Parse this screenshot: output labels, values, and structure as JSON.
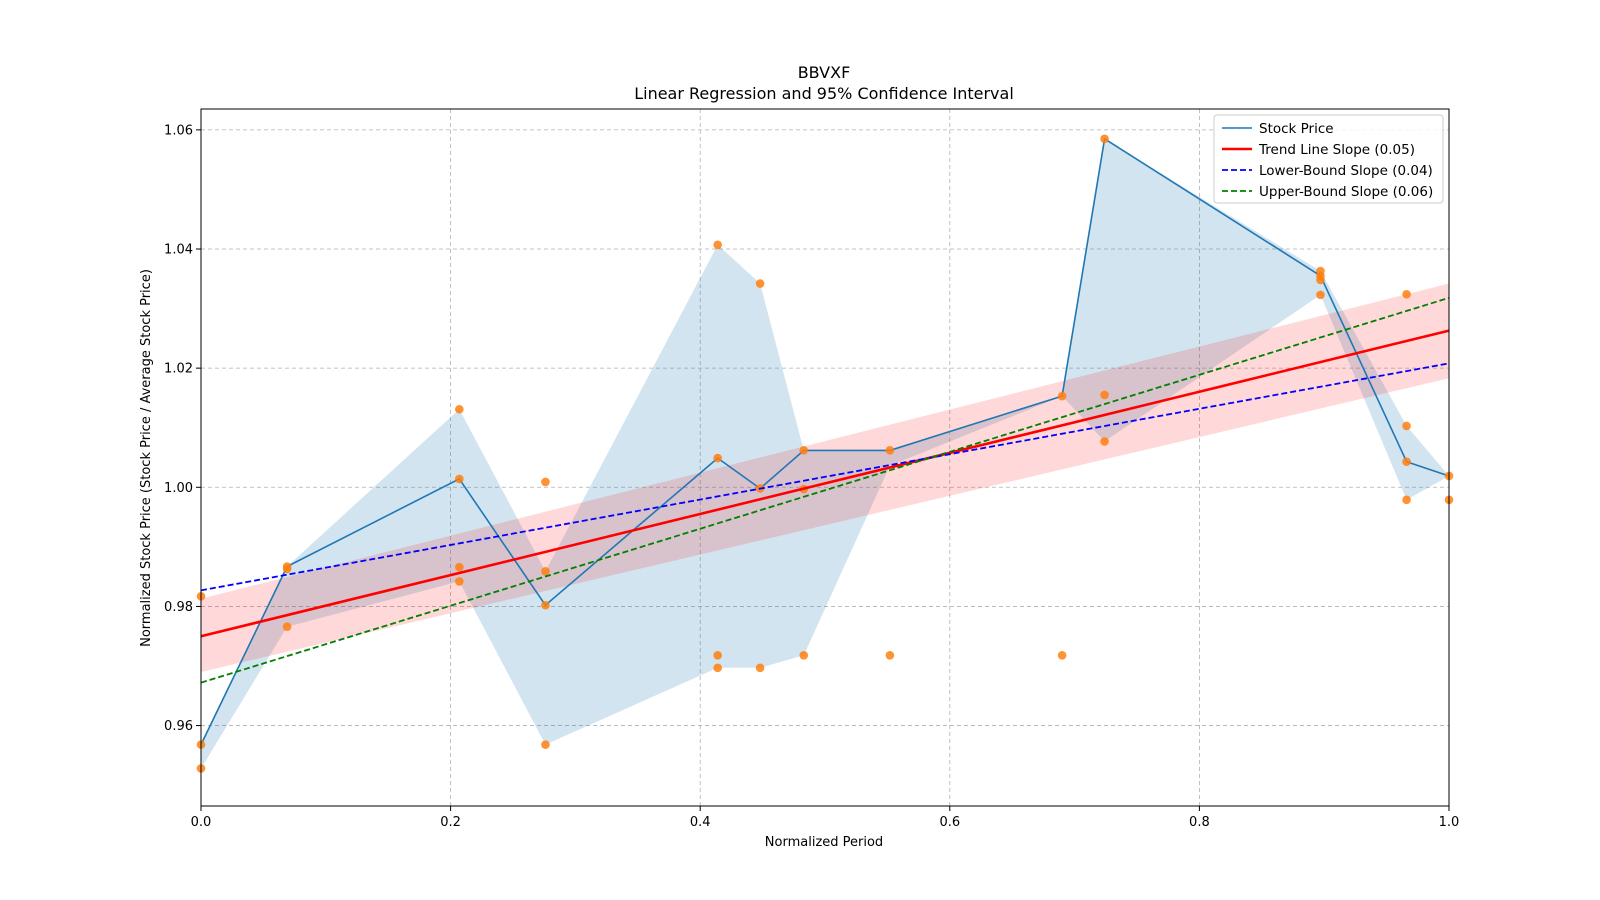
{
  "chart_data": {
    "type": "line",
    "title": "BBVXF",
    "subtitle": "Linear Regression and 95% Confidence Interval",
    "xlabel": "Normalized Period",
    "ylabel": "Normalized Stock Price (Stock Price / Average Stock Price)",
    "xlim": [
      0.0,
      1.0
    ],
    "ylim": [
      0.9465,
      1.0635
    ],
    "xticks": [
      0.0,
      0.2,
      0.4,
      0.6,
      0.8,
      1.0
    ],
    "xtick_labels": [
      "0.0",
      "0.2",
      "0.4",
      "0.6",
      "0.8",
      "1.0"
    ],
    "yticks": [
      0.96,
      0.98,
      1.0,
      1.02,
      1.04,
      1.06
    ],
    "ytick_labels": [
      "0.96",
      "0.98",
      "1.00",
      "1.02",
      "1.04",
      "1.06"
    ],
    "grid": true,
    "legend_position": "top-right",
    "colors": {
      "stock": "#1f77b4",
      "band": "#1f77b4",
      "points": "#ff7f0e",
      "trend": "#ff0000",
      "trend_ci": "#ff0000",
      "lower": "#0000ff",
      "upper": "#008000"
    },
    "stock_price": {
      "name": "Stock Price",
      "x": [
        0.0,
        0.069,
        0.207,
        0.276,
        0.414,
        0.448,
        0.483,
        0.552,
        0.69,
        0.724,
        0.897,
        0.966,
        1.0
      ],
      "y": [
        0.9568,
        0.9867,
        1.0014,
        0.9802,
        1.0049,
        0.9998,
        1.0062,
        1.0062,
        1.0153,
        1.0585,
        1.0355,
        1.0043,
        1.0019
      ]
    },
    "stock_band": {
      "x": [
        0.0,
        0.069,
        0.207,
        0.276,
        0.414,
        0.448,
        0.483,
        0.552,
        0.69,
        0.724,
        0.897,
        0.966,
        1.0
      ],
      "upper": [
        0.9568,
        0.9867,
        1.0131,
        0.9859,
        1.0407,
        1.0342,
        1.0062,
        1.0062,
        1.0153,
        1.0585,
        1.0363,
        1.0103,
        1.0019
      ],
      "lower": [
        0.9528,
        0.9766,
        0.9842,
        0.9568,
        0.9697,
        0.9697,
        0.9718,
        1.0036,
        1.0153,
        1.0077,
        1.0323,
        0.9979,
        1.0019
      ]
    },
    "scatter_points": {
      "x": [
        0.0,
        0.0,
        0.0,
        0.069,
        0.069,
        0.069,
        0.207,
        0.207,
        0.207,
        0.207,
        0.276,
        0.276,
        0.276,
        0.276,
        0.414,
        0.414,
        0.414,
        0.414,
        0.448,
        0.448,
        0.448,
        0.483,
        0.483,
        0.483,
        0.552,
        0.552,
        0.69,
        0.69,
        0.724,
        0.724,
        0.724,
        0.897,
        0.897,
        0.897,
        0.897,
        0.966,
        0.966,
        0.966,
        0.966,
        1.0,
        1.0
      ],
      "y": [
        0.9528,
        0.9568,
        0.9817,
        0.9766,
        0.9863,
        0.9867,
        0.9842,
        0.9866,
        1.0014,
        1.0131,
        0.9568,
        0.9802,
        0.9859,
        1.0009,
        0.9697,
        0.9718,
        1.0049,
        1.0407,
        0.9697,
        0.9998,
        1.0342,
        0.9718,
        0.9997,
        1.0062,
        0.9718,
        1.0062,
        0.9718,
        1.0153,
        1.0077,
        1.0155,
        1.0585,
        1.0323,
        1.0348,
        1.0355,
        1.0363,
        0.9979,
        1.0043,
        1.0103,
        1.0324,
        0.9979,
        1.0019
      ]
    },
    "trend": {
      "name": "Trend Line Slope (0.05)",
      "x": [
        0.0,
        1.0
      ],
      "y": [
        0.975,
        1.0263
      ],
      "ci_upper": [
        0.9813,
        1.0342
      ],
      "ci_lower": [
        0.969,
        1.0183
      ]
    },
    "lower_bound": {
      "name": "Lower-Bound Slope (0.04)",
      "x": [
        0.0,
        1.0
      ],
      "y": [
        0.9827,
        1.0208
      ]
    },
    "upper_bound": {
      "name": "Upper-Bound Slope (0.06)",
      "x": [
        0.0,
        1.0
      ],
      "y": [
        0.9672,
        1.0318
      ]
    }
  }
}
